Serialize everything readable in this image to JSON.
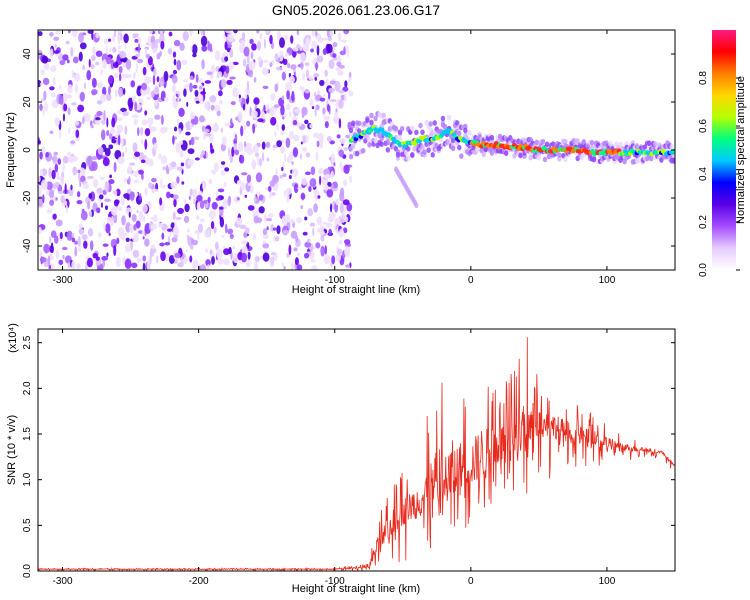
{
  "title": "GN05.2026.061.23.06.G17",
  "colors": {
    "snr_line": "#e8291b",
    "colormap": [
      "#ffffff",
      "#e6ccff",
      "#a64dff",
      "#5b00e6",
      "#0000ff",
      "#00c8ff",
      "#00ff80",
      "#b4ff00",
      "#ffd700",
      "#ff7f00",
      "#ff0000",
      "#ff1a80"
    ]
  },
  "chart_data": [
    {
      "type": "heatmap",
      "xlabel": "Height of straight line (km)",
      "ylabel": "Frequency (Hz)",
      "xlim": [
        -318,
        150
      ],
      "ylim": [
        -50,
        50
      ],
      "xticks": [
        -300,
        -200,
        -100,
        0,
        100
      ],
      "yticks": [
        -40,
        -20,
        0,
        20,
        40
      ],
      "colorbar": {
        "label": "Normalized spectral amplitude",
        "range": [
          0.0,
          1.0
        ],
        "ticks": [
          "0.0",
          "0.2",
          "0.4",
          "0.6",
          "0.8"
        ]
      },
      "signal_ridge": {
        "x": [
          -88,
          -80,
          -72,
          -65,
          -58,
          -50,
          -42,
          -35,
          -28,
          -20,
          -15,
          -10,
          0,
          10,
          20,
          30,
          40,
          50,
          60,
          70,
          80,
          90,
          100,
          110,
          120,
          130,
          140,
          150
        ],
        "frequency": [
          4,
          6,
          9,
          8,
          5,
          2,
          3,
          5,
          4,
          7,
          8,
          5,
          3,
          2,
          2,
          1.5,
          1,
          0,
          0,
          0,
          0,
          -1,
          -1,
          -1,
          -1,
          -1,
          -1,
          -1
        ]
      },
      "noise_region_x": [
        -318,
        -88
      ]
    },
    {
      "type": "line",
      "xlabel": "Height of straight line (km)",
      "ylabel": "SNR (10 * v/v)",
      "yscale_label": "(x10⁴)",
      "xlim": [
        -318,
        150
      ],
      "ylim": [
        0,
        2.65
      ],
      "xticks": [
        -300,
        -200,
        -100,
        0,
        100
      ],
      "yticks": [
        "0.0",
        "0.5",
        "1.0",
        "1.5",
        "2.0",
        "2.5"
      ],
      "series": [
        {
          "x": [
            -318,
            -200,
            -100,
            -75,
            -70,
            -60,
            -50,
            -40,
            -30,
            -20,
            -10,
            0,
            10,
            20,
            30,
            40,
            50,
            60,
            70,
            80,
            90,
            100,
            110,
            120,
            130,
            140,
            150
          ],
          "y": [
            0.02,
            0.02,
            0.02,
            0.04,
            0.2,
            0.45,
            0.6,
            0.7,
            0.8,
            0.9,
            1.0,
            1.1,
            1.2,
            1.3,
            1.4,
            1.5,
            1.6,
            1.55,
            1.5,
            1.45,
            1.4,
            1.38,
            1.35,
            1.33,
            1.32,
            1.3,
            1.15
          ],
          "y_max": [
            0.03,
            0.03,
            0.03,
            0.08,
            0.5,
            0.9,
            1.1,
            1.3,
            1.8,
            2.3,
            2.1,
            1.9,
            2.3,
            2.0,
            2.2,
            2.65,
            2.1,
            2.0,
            1.9,
            1.8,
            1.75,
            1.65,
            1.5,
            1.45,
            1.4,
            1.35,
            1.2
          ],
          "y_min": [
            0.0,
            0.0,
            0.0,
            0.0,
            0.02,
            0.05,
            0.1,
            0.15,
            0.2,
            0.3,
            0.4,
            0.5,
            0.6,
            0.7,
            0.75,
            0.8,
            0.9,
            0.95,
            1.0,
            1.0,
            1.1,
            1.2,
            1.2,
            1.22,
            1.25,
            1.25,
            1.05
          ]
        }
      ]
    }
  ]
}
